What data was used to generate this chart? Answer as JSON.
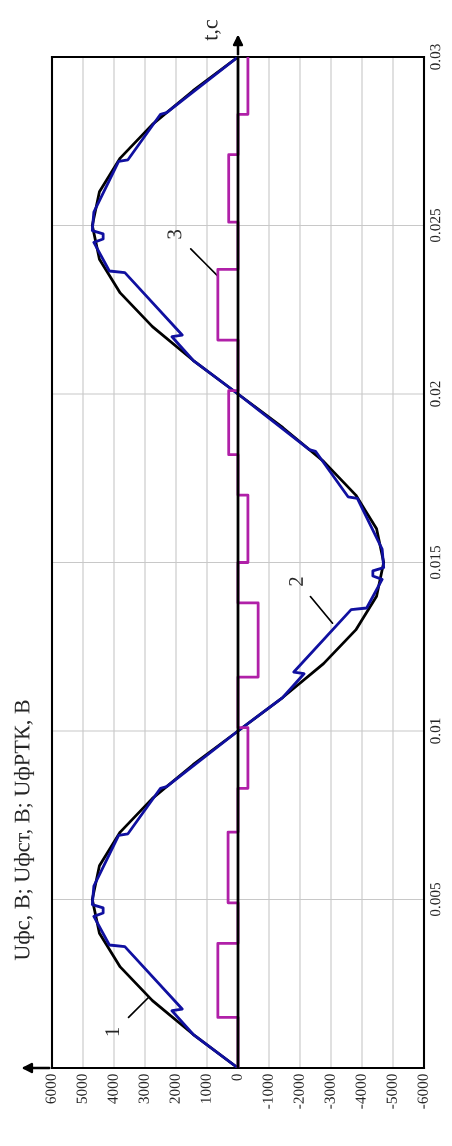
{
  "chart_data": {
    "type": "line",
    "title": "Uфс, В; Uфст, В; UфРТК, В",
    "ylabel": "t,c",
    "xlim": [
      6000,
      -6000
    ],
    "xticks": [
      6000,
      5000,
      4000,
      3000,
      2000,
      1000,
      0,
      -1000,
      -2000,
      -3000,
      -4000,
      -5000,
      -6000
    ],
    "ylim": [
      0,
      0.03
    ],
    "yticks": [
      0.005,
      0.01,
      0.015,
      0.02,
      0.025,
      0.03
    ],
    "grid": true,
    "marker": "none",
    "line_style": "solid",
    "series": [
      {
        "color": "#000000",
        "values": [
          0,
          0.001,
          0.002,
          0.003,
          0.004,
          0.005,
          0.006,
          0.007,
          0.008,
          0.009,
          0.01,
          0.011,
          0.012,
          0.013,
          0.014,
          0.015,
          0.016,
          0.017,
          0.018,
          0.019,
          0.02,
          0.021,
          0.022,
          0.023,
          0.024,
          0.025,
          0.026,
          0.027,
          0.028,
          0.029,
          0.03
        ],
        "x": [
          0,
          1450,
          2760,
          3800,
          4470,
          4700,
          4470,
          3800,
          2760,
          1450,
          0,
          -1450,
          -2760,
          -3800,
          -4470,
          -4700,
          -4470,
          -3800,
          -2760,
          -1450,
          0,
          1450,
          2760,
          3800,
          4470,
          4700,
          4470,
          3800,
          2760,
          1450,
          0
        ]
      },
      {
        "color": "#1010a0",
        "values": [
          0,
          0.001,
          0.0017,
          0.00175,
          0.0036,
          0.00365,
          0.0045,
          0.0046,
          0.00475,
          0.00485,
          0.0054,
          0.0069,
          0.00695,
          0.0083,
          0.00835,
          0.01,
          0.011,
          0.0117,
          0.01175,
          0.0136,
          0.01365,
          0.0145,
          0.0146,
          0.01475,
          0.01485,
          0.0154,
          0.0169,
          0.01695,
          0.0183,
          0.01835,
          0.02,
          0.021,
          0.0217,
          0.02175,
          0.0236,
          0.02365,
          0.0245,
          0.0246,
          0.02475,
          0.02485,
          0.0254,
          0.0269,
          0.02695,
          0.0283,
          0.02835,
          0.03
        ],
        "x": [
          0,
          1450,
          2130,
          1800,
          3650,
          4150,
          4650,
          4350,
          4350,
          4700,
          4650,
          3850,
          3550,
          2500,
          2300,
          0,
          -1450,
          -2130,
          -1800,
          -3650,
          -4150,
          -4650,
          -4350,
          -4350,
          -4700,
          -4650,
          -3850,
          -3550,
          -2500,
          -2300,
          0,
          1450,
          2130,
          1800,
          3650,
          4150,
          4650,
          4350,
          4350,
          4700,
          4650,
          3850,
          3550,
          2500,
          2300,
          0
        ]
      },
      {
        "color": "#b020a8",
        "values": [
          0,
          0.0015,
          0.0015,
          0.0037,
          0.0037,
          0.0049,
          0.0049,
          0.007,
          0.007,
          0.0083,
          0.0083,
          0.0101,
          0.0101,
          0.0116,
          0.0116,
          0.0138,
          0.0138,
          0.015,
          0.015,
          0.017,
          0.017,
          0.0182,
          0.0182,
          0.0201,
          0.0201,
          0.0216,
          0.0216,
          0.0237,
          0.0237,
          0.0251,
          0.0251,
          0.0271,
          0.0271,
          0.0283,
          0.0283,
          0.03
        ],
        "x": [
          0,
          0,
          650,
          650,
          0,
          0,
          320,
          320,
          0,
          0,
          -320,
          -320,
          0,
          0,
          -650,
          -650,
          0,
          0,
          -320,
          -320,
          0,
          0,
          300,
          300,
          0,
          0,
          650,
          650,
          0,
          0,
          300,
          300,
          0,
          0,
          -320,
          -320
        ]
      }
    ],
    "annotations": [
      {
        "text": "1",
        "x": 2880,
        "y": 0.0021
      },
      {
        "text": "2",
        "x": -3050,
        "y": 0.0132
      },
      {
        "text": "3",
        "x": 650,
        "y": 0.0235
      }
    ]
  }
}
